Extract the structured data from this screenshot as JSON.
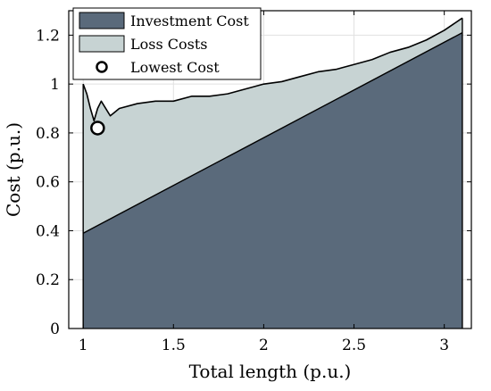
{
  "chart_data": {
    "type": "area",
    "xlabel": "Total length (p.u.)",
    "ylabel": "Cost (p.u.)",
    "xlim": [
      0.92,
      3.15
    ],
    "ylim": [
      0,
      1.3
    ],
    "x_ticks": [
      1,
      1.5,
      2,
      2.5,
      3
    ],
    "y_ticks": [
      0,
      0.2,
      0.4,
      0.6,
      0.8,
      1,
      1.2
    ],
    "x_tick_labels": [
      "1",
      "1.5",
      "2",
      "2.5",
      "3"
    ],
    "y_tick_labels": [
      "0",
      "0.2",
      "0.4",
      "0.6",
      "0.8",
      "1",
      "1.2"
    ],
    "grid": true,
    "legend_position": "top-left",
    "series": [
      {
        "name": "Investment Cost",
        "type": "area",
        "color": "#5a6a7b",
        "x": [
          1.0,
          3.1
        ],
        "y": [
          0.39,
          1.21
        ]
      },
      {
        "name": "Loss Costs",
        "type": "area",
        "color": "#c7d3d3",
        "x": [
          1.0,
          1.02,
          1.04,
          1.06,
          1.08,
          1.1,
          1.15,
          1.2,
          1.3,
          1.4,
          1.5,
          1.6,
          1.7,
          1.8,
          1.9,
          2.0,
          2.1,
          2.2,
          2.3,
          2.4,
          2.5,
          2.6,
          2.7,
          2.8,
          2.9,
          3.0,
          3.1
        ],
        "y": [
          1.0,
          0.96,
          0.9,
          0.85,
          0.9,
          0.93,
          0.87,
          0.9,
          0.92,
          0.93,
          0.93,
          0.95,
          0.95,
          0.96,
          0.98,
          1.0,
          1.01,
          1.03,
          1.05,
          1.06,
          1.08,
          1.1,
          1.13,
          1.15,
          1.18,
          1.22,
          1.27
        ]
      }
    ],
    "marker": {
      "name": "Lowest Cost",
      "x": 1.08,
      "y": 0.82
    }
  }
}
